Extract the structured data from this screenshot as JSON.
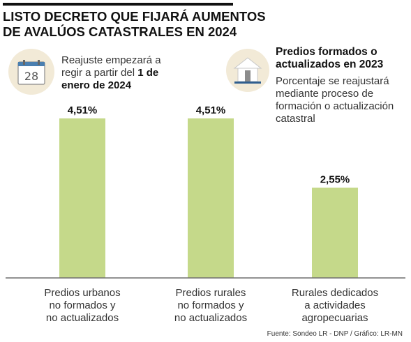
{
  "header": {
    "title_lines": [
      "LISTO DECRETO QUE FIJARÁ AUMENTOS",
      "DE AVALÚOS CATASTRALES EN 2024"
    ]
  },
  "notes": {
    "calendar": {
      "icon": "calendar-icon",
      "day": "28",
      "lines": [
        "Reajuste empezará a",
        "regir a partir del"
      ],
      "bold_inline": "1 de",
      "bold_line": "enero de 2024"
    },
    "building": {
      "icon": "building-icon",
      "heading_lines": [
        "Predios formados o",
        "actualizados en 2023"
      ],
      "body_lines": [
        "Porcentaje se reajustará",
        "mediante proceso de",
        "formación o actualización",
        "catastral"
      ]
    }
  },
  "chart_data": {
    "type": "bar",
    "categories": [
      [
        "Predios urbanos",
        "no formados y",
        "no actualizados"
      ],
      [
        "Predios rurales",
        "no formados y",
        "no actualizados"
      ],
      [
        "Rurales dedicados",
        "a actividades",
        "agropecuarias"
      ]
    ],
    "values": [
      4.51,
      4.51,
      2.55
    ],
    "data_labels": [
      "4,51%",
      "4,51%",
      "2,55%"
    ],
    "ylim": [
      0,
      4.51
    ],
    "bar_color": "#c5d98a",
    "grid": false,
    "legend": "none"
  },
  "footer": {
    "source": "Fuente: Sondeo LR - DNP / Gráfico: LR-MN"
  }
}
